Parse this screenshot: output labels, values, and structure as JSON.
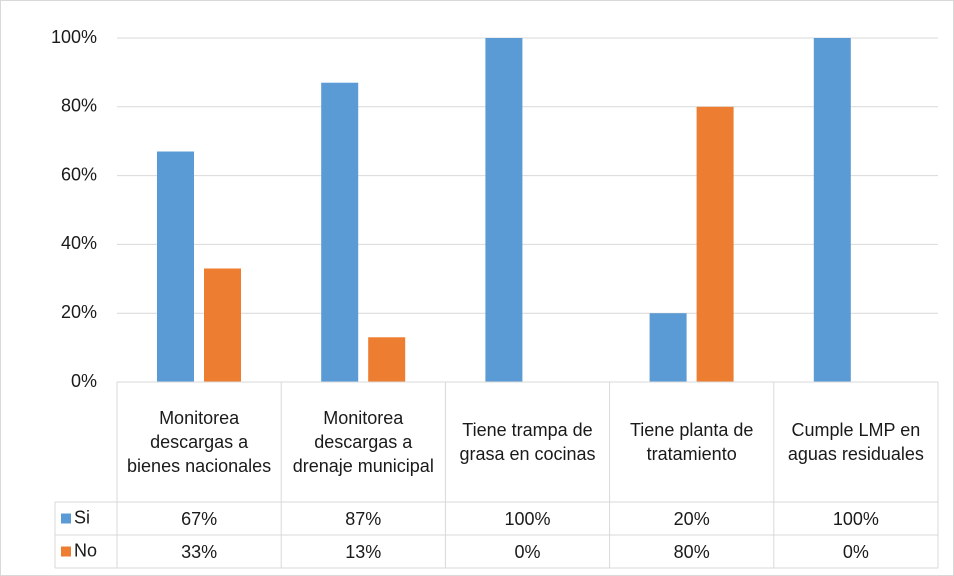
{
  "chart_data": {
    "type": "bar",
    "categories": [
      "Monitorea descargas a bienes nacionales",
      "Monitorea descargas a drenaje municipal",
      "Tiene trampa de grasa en cocinas",
      "Tiene planta de tratamiento",
      "Cumple LMP en aguas residuales"
    ],
    "series": [
      {
        "name": "Si",
        "color": "#5b9bd5",
        "values": [
          67,
          87,
          100,
          20,
          100
        ],
        "value_labels": [
          "67%",
          "87%",
          "100%",
          "20%",
          "100%"
        ]
      },
      {
        "name": "No",
        "color": "#ed7d31",
        "values": [
          33,
          13,
          0,
          80,
          0
        ],
        "value_labels": [
          "33%",
          "13%",
          "0%",
          "80%",
          "0%"
        ]
      }
    ],
    "ylim": [
      0,
      100
    ],
    "yticks": [
      {
        "value": 0,
        "label": "0%"
      },
      {
        "value": 20,
        "label": "20%"
      },
      {
        "value": 40,
        "label": "40%"
      },
      {
        "value": 60,
        "label": "60%"
      },
      {
        "value": 80,
        "label": "80%"
      },
      {
        "value": 100,
        "label": "100%"
      }
    ],
    "grid": true
  }
}
